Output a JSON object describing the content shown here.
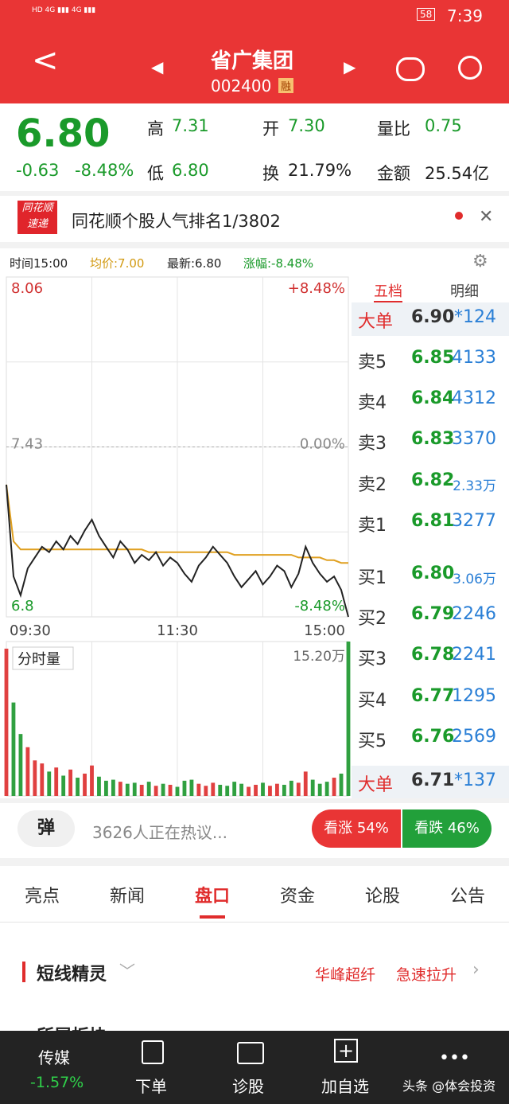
{
  "status": {
    "time": "7:39",
    "battery": "58"
  },
  "header": {
    "title": "省广集团",
    "code": "002400",
    "badge": "融"
  },
  "quote": {
    "price": "6.80",
    "change": "-0.63",
    "pct": "-8.48%",
    "high_label": "高",
    "high": "7.31",
    "low_label": "低",
    "low": "6.80",
    "open_label": "开",
    "open": "7.30",
    "turnover_label": "换",
    "turnover": "21.79%",
    "ratio_label": "量比",
    "ratio": "0.75",
    "amount_label": "金额",
    "amount": "25.54亿"
  },
  "banner": {
    "logo_top": "同花顺",
    "logo_bottom": "速递",
    "text": "同花顺个股人气排名1/3802"
  },
  "info": {
    "time": "时间15:00",
    "avg": "均价:7.00",
    "last": "最新:6.80",
    "pct": "涨幅:-8.48%"
  },
  "chart": {
    "type": "line",
    "ylim": [
      6.8,
      8.06
    ],
    "yticks": [
      8.06,
      7.43,
      6.8
    ],
    "pct_ticks": [
      "+8.48%",
      "0.00%",
      "-8.48%"
    ],
    "xticks": [
      "09:30",
      "11:30",
      "15:00"
    ],
    "price_color": "#222222",
    "avg_color": "#e0a020",
    "price": [
      7.29,
      6.95,
      6.88,
      6.98,
      7.02,
      7.06,
      7.04,
      7.08,
      7.05,
      7.1,
      7.07,
      7.12,
      7.16,
      7.1,
      7.06,
      7.02,
      7.08,
      7.05,
      7.0,
      7.03,
      7.01,
      7.04,
      6.99,
      7.02,
      7.0,
      6.96,
      6.93,
      6.99,
      7.02,
      7.06,
      7.03,
      7.0,
      6.95,
      6.91,
      6.94,
      6.97,
      6.92,
      6.95,
      6.99,
      6.97,
      6.91,
      6.96,
      7.06,
      7.0,
      6.96,
      6.93,
      6.95,
      6.9,
      6.8
    ],
    "avg": [
      7.29,
      7.08,
      7.05,
      7.05,
      7.05,
      7.05,
      7.05,
      7.05,
      7.05,
      7.05,
      7.05,
      7.05,
      7.05,
      7.05,
      7.05,
      7.05,
      7.05,
      7.05,
      7.05,
      7.05,
      7.04,
      7.04,
      7.04,
      7.04,
      7.04,
      7.04,
      7.04,
      7.04,
      7.04,
      7.04,
      7.04,
      7.04,
      7.03,
      7.03,
      7.03,
      7.03,
      7.03,
      7.03,
      7.03,
      7.03,
      7.03,
      7.02,
      7.02,
      7.02,
      7.02,
      7.01,
      7.01,
      7.0,
      7.0
    ],
    "volume_label": "分时量",
    "volume_max_label": "15.20万",
    "volume_ylim": [
      0,
      15.2
    ],
    "volume": [
      14.5,
      9.2,
      6.1,
      4.8,
      3.5,
      3.2,
      2.4,
      2.8,
      2.0,
      2.6,
      1.8,
      2.2,
      3.0,
      1.9,
      1.5,
      1.6,
      1.4,
      1.2,
      1.3,
      1.1,
      1.4,
      1.0,
      1.2,
      1.1,
      0.9,
      1.5,
      1.6,
      1.2,
      1.0,
      1.3,
      1.1,
      1.0,
      1.4,
      1.2,
      0.9,
      1.1,
      1.3,
      1.0,
      1.2,
      1.1,
      1.5,
      1.3,
      2.4,
      1.6,
      1.2,
      1.4,
      1.8,
      2.2,
      15.2
    ]
  },
  "book": {
    "tabs": [
      "五档",
      "明细"
    ],
    "rows": [
      [
        "大单",
        "6.90",
        "*124"
      ],
      [
        "卖5",
        "6.85",
        "4133"
      ],
      [
        "卖4",
        "6.84",
        "4312"
      ],
      [
        "卖3",
        "6.83",
        "3370"
      ],
      [
        "卖2",
        "6.82",
        "2.33万"
      ],
      [
        "卖1",
        "6.81",
        "3277"
      ],
      [
        "买1",
        "6.80",
        "3.06万"
      ],
      [
        "买2",
        "6.79",
        "2246"
      ],
      [
        "买3",
        "6.78",
        "2241"
      ],
      [
        "买4",
        "6.77",
        "1295"
      ],
      [
        "买5",
        "6.76",
        "2569"
      ],
      [
        "大单",
        "6.71",
        "*137"
      ]
    ]
  },
  "comment": {
    "icon": "弹",
    "text": "3626人正在热议...",
    "up": "看涨 54%",
    "down": "看跌 46%"
  },
  "tabs": [
    "亮点",
    "新闻",
    "盘口",
    "资金",
    "论股",
    "公告"
  ],
  "section": {
    "title": "短线精灵",
    "tag1": "华峰超纤",
    "tag2": "急速拉升",
    "next": "所属板块"
  },
  "nav": {
    "sector": "传媒",
    "sector_pct": "-1.57%",
    "items": [
      "下单",
      "诊股",
      "加自选"
    ],
    "watermark": "头条 @体会投资"
  }
}
